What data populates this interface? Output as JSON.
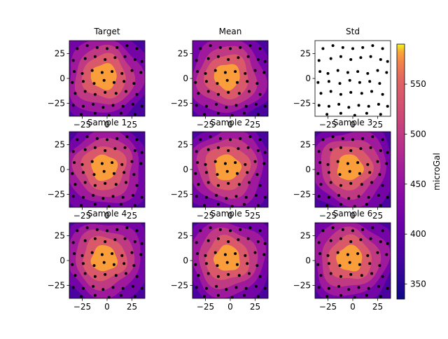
{
  "chart_data": {
    "type": "heatmap",
    "layout": "3x3 grid of contour maps with shared colorbar",
    "panels": [
      {
        "title": "Target",
        "kind": "field"
      },
      {
        "title": "Mean",
        "kind": "field"
      },
      {
        "title": "Std",
        "kind": "points-only"
      },
      {
        "title": "Sample 1",
        "kind": "field"
      },
      {
        "title": "Sample 2",
        "kind": "field"
      },
      {
        "title": "Sample 3",
        "kind": "field"
      },
      {
        "title": "Sample 4",
        "kind": "field"
      },
      {
        "title": "Sample 5",
        "kind": "field"
      },
      {
        "title": "Sample 6",
        "kind": "field"
      }
    ],
    "x_ticks": [
      -25,
      0,
      25
    ],
    "y_ticks": [
      25,
      0,
      -25
    ],
    "xlim": [
      -38,
      38
    ],
    "ylim": [
      -38,
      38
    ],
    "colorbar": {
      "label": "microGal",
      "min": 335,
      "max": 590,
      "ticks": [
        350,
        400,
        450,
        500,
        550
      ],
      "colormap": "plasma"
    },
    "field_model": {
      "peak": 585,
      "floor": 340,
      "sigma": 28
    },
    "stations": [
      [
        -30,
        30
      ],
      [
        -20,
        33
      ],
      [
        -10,
        31
      ],
      [
        0,
        30
      ],
      [
        10,
        31
      ],
      [
        20,
        33
      ],
      [
        30,
        30
      ],
      [
        -34,
        18
      ],
      [
        -22,
        20
      ],
      [
        -12,
        22
      ],
      [
        -2,
        19
      ],
      [
        8,
        21
      ],
      [
        18,
        22
      ],
      [
        28,
        19
      ],
      [
        35,
        17
      ],
      [
        -33,
        7
      ],
      [
        -25,
        5
      ],
      [
        -15,
        8
      ],
      [
        -5,
        6
      ],
      [
        5,
        7
      ],
      [
        15,
        5
      ],
      [
        25,
        8
      ],
      [
        34,
        6
      ],
      [
        -35,
        -4
      ],
      [
        -24,
        -3
      ],
      [
        -13,
        -5
      ],
      [
        -3,
        -2
      ],
      [
        7,
        -4
      ],
      [
        17,
        -3
      ],
      [
        27,
        -5
      ],
      [
        -32,
        -15
      ],
      [
        -22,
        -13
      ],
      [
        -12,
        -16
      ],
      [
        -2,
        -14
      ],
      [
        9,
        -15
      ],
      [
        19,
        -13
      ],
      [
        30,
        -16
      ],
      [
        -34,
        -27
      ],
      [
        -24,
        -28
      ],
      [
        -14,
        -26
      ],
      [
        -4,
        -29
      ],
      [
        6,
        -27
      ],
      [
        16,
        -28
      ],
      [
        26,
        -26
      ],
      [
        35,
        -28
      ],
      [
        -26,
        -36
      ],
      [
        -12,
        -35
      ],
      [
        2,
        -37
      ],
      [
        14,
        -35
      ],
      [
        28,
        -36
      ]
    ]
  }
}
